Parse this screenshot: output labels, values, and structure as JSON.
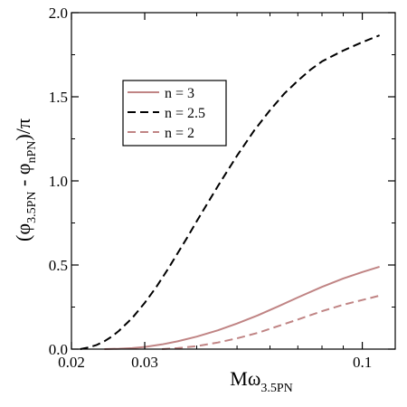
{
  "chart_data": {
    "type": "line",
    "title": "",
    "xlabel": {
      "main": "Mω",
      "sub": "3.5PN"
    },
    "ylabel": {
      "open": "(φ",
      "sub1": "3.5PN",
      "mid": " - φ",
      "sub2": "nPN",
      "close": ")/π"
    },
    "x_scale": "log",
    "xlim": [
      0.02,
      0.12
    ],
    "ylim": [
      0.0,
      2.0
    ],
    "x_ticks": [
      {
        "value": 0.02,
        "label": "0.02"
      },
      {
        "value": 0.03,
        "label": "0.03"
      },
      {
        "value": 0.1,
        "label": "0.1"
      }
    ],
    "y_ticks": [
      {
        "value": 0.0,
        "label": "0.0"
      },
      {
        "value": 0.5,
        "label": "0.5"
      },
      {
        "value": 1.0,
        "label": "1.0"
      },
      {
        "value": 1.5,
        "label": "1.5"
      },
      {
        "value": 2.0,
        "label": "2.0"
      }
    ],
    "grid": false,
    "legend_position": "upper-left",
    "series": [
      {
        "name": "n = 3",
        "color": "#c08484",
        "dash": "solid",
        "x": [
          0.024,
          0.026,
          0.028,
          0.03,
          0.033,
          0.036,
          0.04,
          0.045,
          0.05,
          0.056,
          0.063,
          0.07,
          0.08,
          0.09,
          0.1,
          0.11
        ],
        "y": [
          0.0,
          0.002,
          0.006,
          0.013,
          0.028,
          0.046,
          0.074,
          0.112,
          0.152,
          0.2,
          0.256,
          0.307,
          0.37,
          0.42,
          0.458,
          0.49
        ]
      },
      {
        "name": "n = 2.5",
        "color": "#000000",
        "dash": "dashed",
        "x": [
          0.021,
          0.022,
          0.023,
          0.024,
          0.025,
          0.026,
          0.028,
          0.03,
          0.032,
          0.034,
          0.036,
          0.038,
          0.04,
          0.045,
          0.05,
          0.055,
          0.06,
          0.065,
          0.07,
          0.075,
          0.08,
          0.09,
          0.1,
          0.11
        ],
        "y": [
          0.0,
          0.01,
          0.025,
          0.047,
          0.075,
          0.108,
          0.185,
          0.275,
          0.37,
          0.47,
          0.57,
          0.665,
          0.76,
          0.97,
          1.15,
          1.3,
          1.42,
          1.52,
          1.595,
          1.66,
          1.71,
          1.775,
          1.825,
          1.865
        ]
      },
      {
        "name": "n = 2",
        "color": "#c08484",
        "dash": "dashed",
        "x": [
          0.033,
          0.036,
          0.04,
          0.045,
          0.05,
          0.056,
          0.063,
          0.07,
          0.08,
          0.09,
          0.1,
          0.11
        ],
        "y": [
          0.0,
          0.006,
          0.018,
          0.039,
          0.064,
          0.096,
          0.138,
          0.176,
          0.225,
          0.264,
          0.292,
          0.318
        ]
      }
    ]
  }
}
